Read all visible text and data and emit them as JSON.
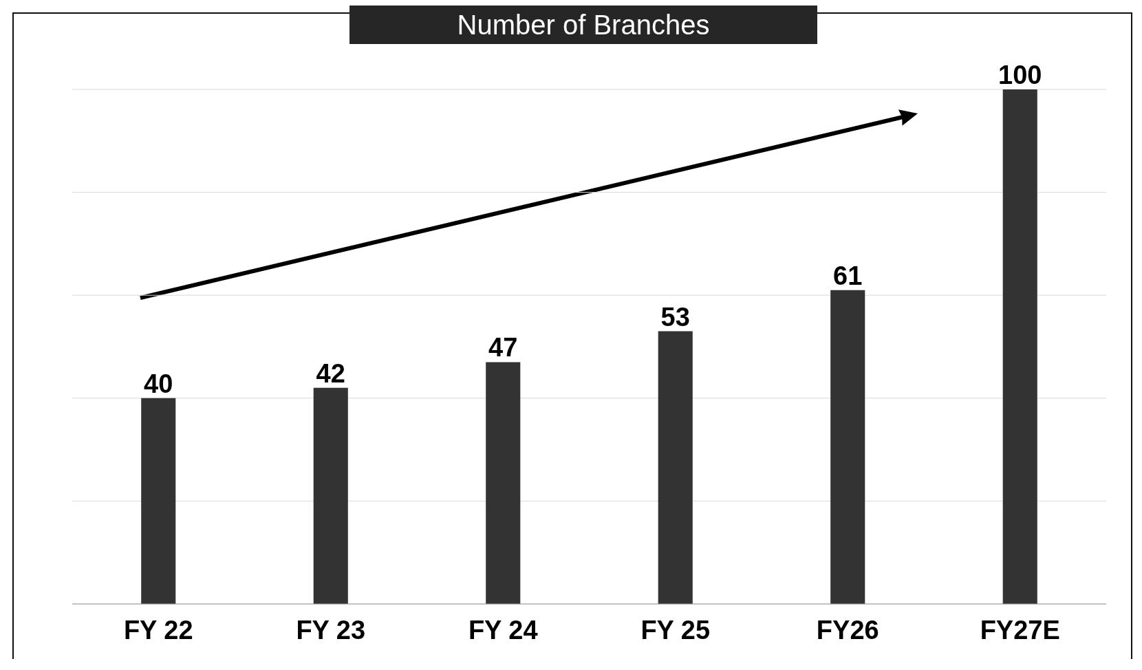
{
  "chart_data": {
    "type": "bar",
    "title": "Number of Branches",
    "categories": [
      "FY 22",
      "FY 23",
      "FY 24",
      "FY 25",
      "FY26",
      "FY27E"
    ],
    "values": [
      40,
      42,
      47,
      53,
      61,
      100
    ],
    "color": "#333333",
    "ylim": [
      0,
      100
    ],
    "tick_labels": "x",
    "grid": "y",
    "data_labels": true
  }
}
